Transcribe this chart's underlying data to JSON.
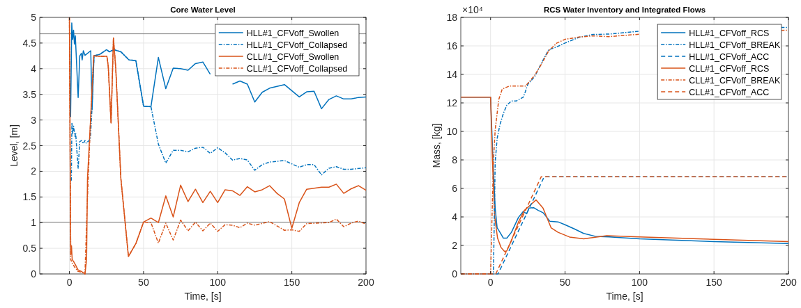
{
  "chart_data": [
    {
      "type": "line",
      "title": "Core Water Level",
      "xlabel": "Time, [s]",
      "ylabel": "Level, [m]",
      "xlim": [
        -20,
        200
      ],
      "xticks": [
        0,
        50,
        100,
        150,
        200
      ],
      "ylim": [
        0,
        5
      ],
      "yticks": [
        0,
        0.5,
        1,
        1.5,
        2,
        2.5,
        3,
        3.5,
        4,
        4.5,
        5
      ],
      "grid": true,
      "legend": "top right",
      "ref_lines": [
        {
          "axis": "y",
          "value": 4.68,
          "color": "#808080"
        },
        {
          "axis": "y",
          "value": 1.01,
          "color": "#808080"
        }
      ],
      "series": [
        {
          "name": "HLL#1_CFVoff_Swollen",
          "color": "#0072bd",
          "line_style": "solid",
          "x": [
            0.8,
            1.6,
            2.2,
            2.8,
            3.4,
            4,
            5.9,
            7,
            8.1,
            8.6,
            9.4,
            10.5,
            14.4,
            15.3,
            16.6,
            20.6,
            25,
            26.9,
            30,
            34.7,
            40.2,
            44.8,
            50,
            55,
            60,
            65,
            70,
            75,
            80,
            85,
            90,
            95,
            100,
            105,
            110,
            115,
            120,
            125,
            130,
            135,
            145,
            155,
            160,
            165,
            170,
            175,
            180,
            185,
            190,
            195,
            200
          ],
          "values": [
            3.06,
            4.89,
            4.57,
            4.75,
            4.48,
            4.64,
            3.44,
            4.25,
            4.3,
            4.17,
            4.35,
            4.26,
            4.35,
            3.2,
            4.25,
            4.28,
            4.37,
            4.33,
            4.37,
            4.33,
            4.17,
            4.16,
            3.27,
            3.26,
            4.22,
            3.61,
            4.01,
            4.0,
            3.97,
            4.1,
            4.13,
            3.89,
            null,
            null,
            3.7,
            3.76,
            3.7,
            3.35,
            3.54,
            3.62,
            3.69,
            3.45,
            3.55,
            3.56,
            3.22,
            3.4,
            3.47,
            3.41,
            3.41,
            3.44,
            3.45
          ]
        },
        {
          "name": "HLL#1_CFVoff_Collapsed",
          "color": "#0072bd",
          "line_style": "dashdot",
          "x": [
            1.3,
            1.7,
            2.2,
            2.8,
            3.8,
            4.2,
            5.9,
            7,
            8.3,
            9.4,
            10.5,
            11.3,
            14.1,
            15.2,
            16.6,
            20.6,
            25,
            26.9,
            30,
            34.7,
            40.2,
            44.8,
            50,
            55,
            60,
            65,
            70,
            75,
            80,
            85,
            90,
            95,
            100,
            105,
            110,
            115,
            120,
            125,
            130,
            135,
            145,
            155,
            160,
            165,
            170,
            175,
            180,
            185,
            190,
            200
          ],
          "values": [
            1.82,
            2.95,
            2.72,
            2.88,
            2.68,
            2.75,
            2.06,
            2.58,
            2.6,
            2.54,
            2.6,
            2.55,
            2.62,
            3.2,
            4.25,
            4.28,
            4.37,
            4.33,
            4.37,
            4.33,
            4.17,
            4.16,
            3.27,
            3.26,
            2.53,
            2.16,
            2.41,
            2.41,
            2.38,
            2.45,
            2.47,
            2.35,
            2.46,
            2.36,
            2.22,
            2.25,
            2.22,
            2.02,
            2.13,
            2.18,
            2.21,
            2.08,
            2.13,
            2.13,
            1.93,
            2.06,
            2.09,
            2.04,
            2.04,
            2.07
          ]
        },
        {
          "name": "CLL#1_CFVoff_Swollen",
          "color": "#d95319",
          "line_style": "solid",
          "x": [
            0,
            0.9,
            1.4,
            1.9,
            3.1,
            4.2,
            5.8,
            8.1,
            10.5,
            11.6,
            12.2,
            14.4,
            16.4,
            20.6,
            25.3,
            26.2,
            28.1,
            29.7,
            31.3,
            34.7,
            39.8,
            44.8,
            50,
            55,
            60,
            65,
            70,
            75,
            80,
            85,
            90,
            95,
            100,
            105,
            110,
            115,
            120,
            125,
            130,
            135,
            140,
            145,
            150,
            155,
            160,
            170,
            175,
            180,
            185,
            190,
            195,
            200
          ],
          "values": [
            5,
            0.37,
            0.55,
            0.28,
            0.23,
            0.17,
            0.08,
            0.05,
            0,
            0.28,
            1.86,
            3.08,
            4.25,
            4.24,
            4.24,
            4.05,
            2.94,
            4.6,
            3.99,
            1.86,
            0.34,
            0.59,
            1.01,
            1.09,
            1.0,
            1.52,
            1.11,
            1.73,
            1.41,
            1.65,
            1.39,
            1.61,
            1.39,
            1.64,
            1.62,
            1.53,
            1.7,
            1.6,
            1.64,
            1.72,
            1.57,
            1.46,
            0.89,
            1.39,
            1.65,
            1.69,
            1.69,
            1.75,
            1.57,
            1.66,
            1.72,
            1.63
          ]
        },
        {
          "name": "CLL#1_CFVoff_Collapsed",
          "color": "#d95319",
          "line_style": "dashdot",
          "x": [
            0,
            0.9,
            1.9,
            3.4,
            5.8,
            8.9,
            10.5,
            11.9,
            14.4,
            16.4,
            20.6,
            25.3,
            26.2,
            28.1,
            29.7,
            31.3,
            34.7,
            39.8,
            44.8,
            50,
            55,
            60,
            65,
            70,
            75,
            80,
            85,
            90,
            95,
            100,
            105,
            110,
            115,
            120,
            125,
            135,
            145,
            150,
            155,
            160,
            175,
            180,
            185,
            190,
            195,
            200
          ],
          "values": [
            5,
            0.28,
            0.21,
            0.14,
            0.05,
            0.03,
            0,
            1.27,
            3.08,
            4.25,
            4.24,
            4.24,
            4.05,
            2.94,
            4.6,
            3.99,
            1.86,
            0.34,
            0.59,
            1.01,
            1.0,
            0.6,
            0.99,
            0.66,
            1.05,
            0.84,
            1.01,
            0.84,
            0.99,
            0.83,
            0.96,
            0.95,
            0.9,
            0.99,
            0.95,
            1.02,
            0.85,
            0.86,
            0.83,
            0.98,
            1.0,
            1.07,
            0.92,
            0.99,
            1.03,
            0.97
          ]
        }
      ]
    },
    {
      "type": "line",
      "title": "RCS Water Inventory and Integrated Flows",
      "xlabel": "Time, [s]",
      "ylabel": "Mass, [kg]",
      "annotations": [
        "×10⁴"
      ],
      "xlim": [
        -20,
        200
      ],
      "xticks": [
        0,
        50,
        100,
        150,
        200
      ],
      "ylim": [
        0,
        18
      ],
      "yticks": [
        0,
        2,
        4,
        6,
        8,
        10,
        12,
        14,
        16,
        18
      ],
      "grid": true,
      "legend": "top right",
      "series": [
        {
          "name": "HLL#1_CFVoff_RCS",
          "color": "#0072bd",
          "line_style": "solid",
          "x": [
            -20,
            0,
            1.6,
            3.1,
            4.4,
            6.3,
            8.6,
            10.9,
            14,
            18.75,
            21.9,
            24.2,
            25.8,
            28.9,
            32,
            35.2,
            39.8,
            45.3,
            50,
            56.25,
            62.5,
            70.3,
            79.6,
            100,
            150,
            200
          ],
          "values": [
            12.4,
            12.4,
            7.9,
            4.6,
            3.24,
            2.92,
            2.51,
            2.51,
            2.92,
            3.97,
            4.38,
            4.22,
            4.62,
            4.65,
            4.46,
            4.3,
            3.7,
            3.65,
            3.45,
            3.16,
            2.84,
            2.64,
            2.6,
            2.46,
            2.27,
            2.14
          ]
        },
        {
          "name": "HLL#1_CFVoff_BREAK",
          "color": "#0072bd",
          "line_style": "dashdot",
          "x": [
            -20,
            1.9,
            3.1,
            4.4,
            6.25,
            8.6,
            10.9,
            14,
            17.2,
            21.9,
            23.4,
            25,
            29.7,
            34.4,
            39,
            43.75,
            50,
            59.4,
            68.75,
            79.6,
            100,
            150,
            195,
            200
          ],
          "values": [
            0,
            0,
            7.86,
            9.5,
            10.46,
            11.27,
            11.84,
            12.13,
            12.13,
            12.4,
            12.8,
            13.3,
            13.86,
            14.84,
            15.73,
            15.9,
            16.2,
            16.6,
            16.8,
            16.83,
            17.03,
            null,
            17.29,
            17.3
          ]
        },
        {
          "name": "HLL#1_CFVoff_ACC",
          "color": "#0072bd",
          "line_style": "dashed",
          "x": [
            -20,
            5,
            36,
            200
          ],
          "values": [
            0,
            0,
            6.82,
            6.82
          ]
        },
        {
          "name": "CLL#1_CFVoff_RCS",
          "color": "#d95319",
          "line_style": "solid",
          "x": [
            -20,
            0,
            1.25,
            2.8,
            4.7,
            7,
            9.4,
            10.9,
            14,
            18.75,
            22.7,
            30.5,
            35.2,
            40.6,
            45.3,
            53,
            62.5,
            78,
            100,
            150,
            200
          ],
          "values": [
            12.4,
            12.4,
            7.9,
            3.97,
            2.51,
            1.86,
            1.57,
            1.62,
            2.35,
            3.65,
            4.46,
            5.19,
            4.62,
            3.24,
            2.92,
            2.59,
            2.46,
            2.68,
            2.6,
            2.43,
            2.27
          ]
        },
        {
          "name": "CLL#1_CFVoff_BREAK",
          "color": "#d95319",
          "line_style": "dashdot",
          "x": [
            -20,
            0,
            1.9,
            3.1,
            5.5,
            7.8,
            12.5,
            18.75,
            23.4,
            29.7,
            34.4,
            39,
            44.5,
            50,
            59.4,
            68.75,
            79.6,
            100,
            150,
            195,
            200
          ],
          "values": [
            0,
            0,
            7.86,
            10.13,
            12.24,
            12.97,
            13.18,
            13.18,
            13.18,
            13.95,
            14.76,
            15.65,
            16.2,
            16.46,
            16.62,
            16.7,
            16.65,
            16.82,
            null,
            17.09,
            17.1
          ]
        },
        {
          "name": "CLL#1_CFVoff_ACC",
          "color": "#d95319",
          "line_style": "dashed",
          "x": [
            -20,
            3.5,
            34,
            200
          ],
          "values": [
            0,
            0,
            6.82,
            6.82
          ]
        }
      ]
    }
  ]
}
